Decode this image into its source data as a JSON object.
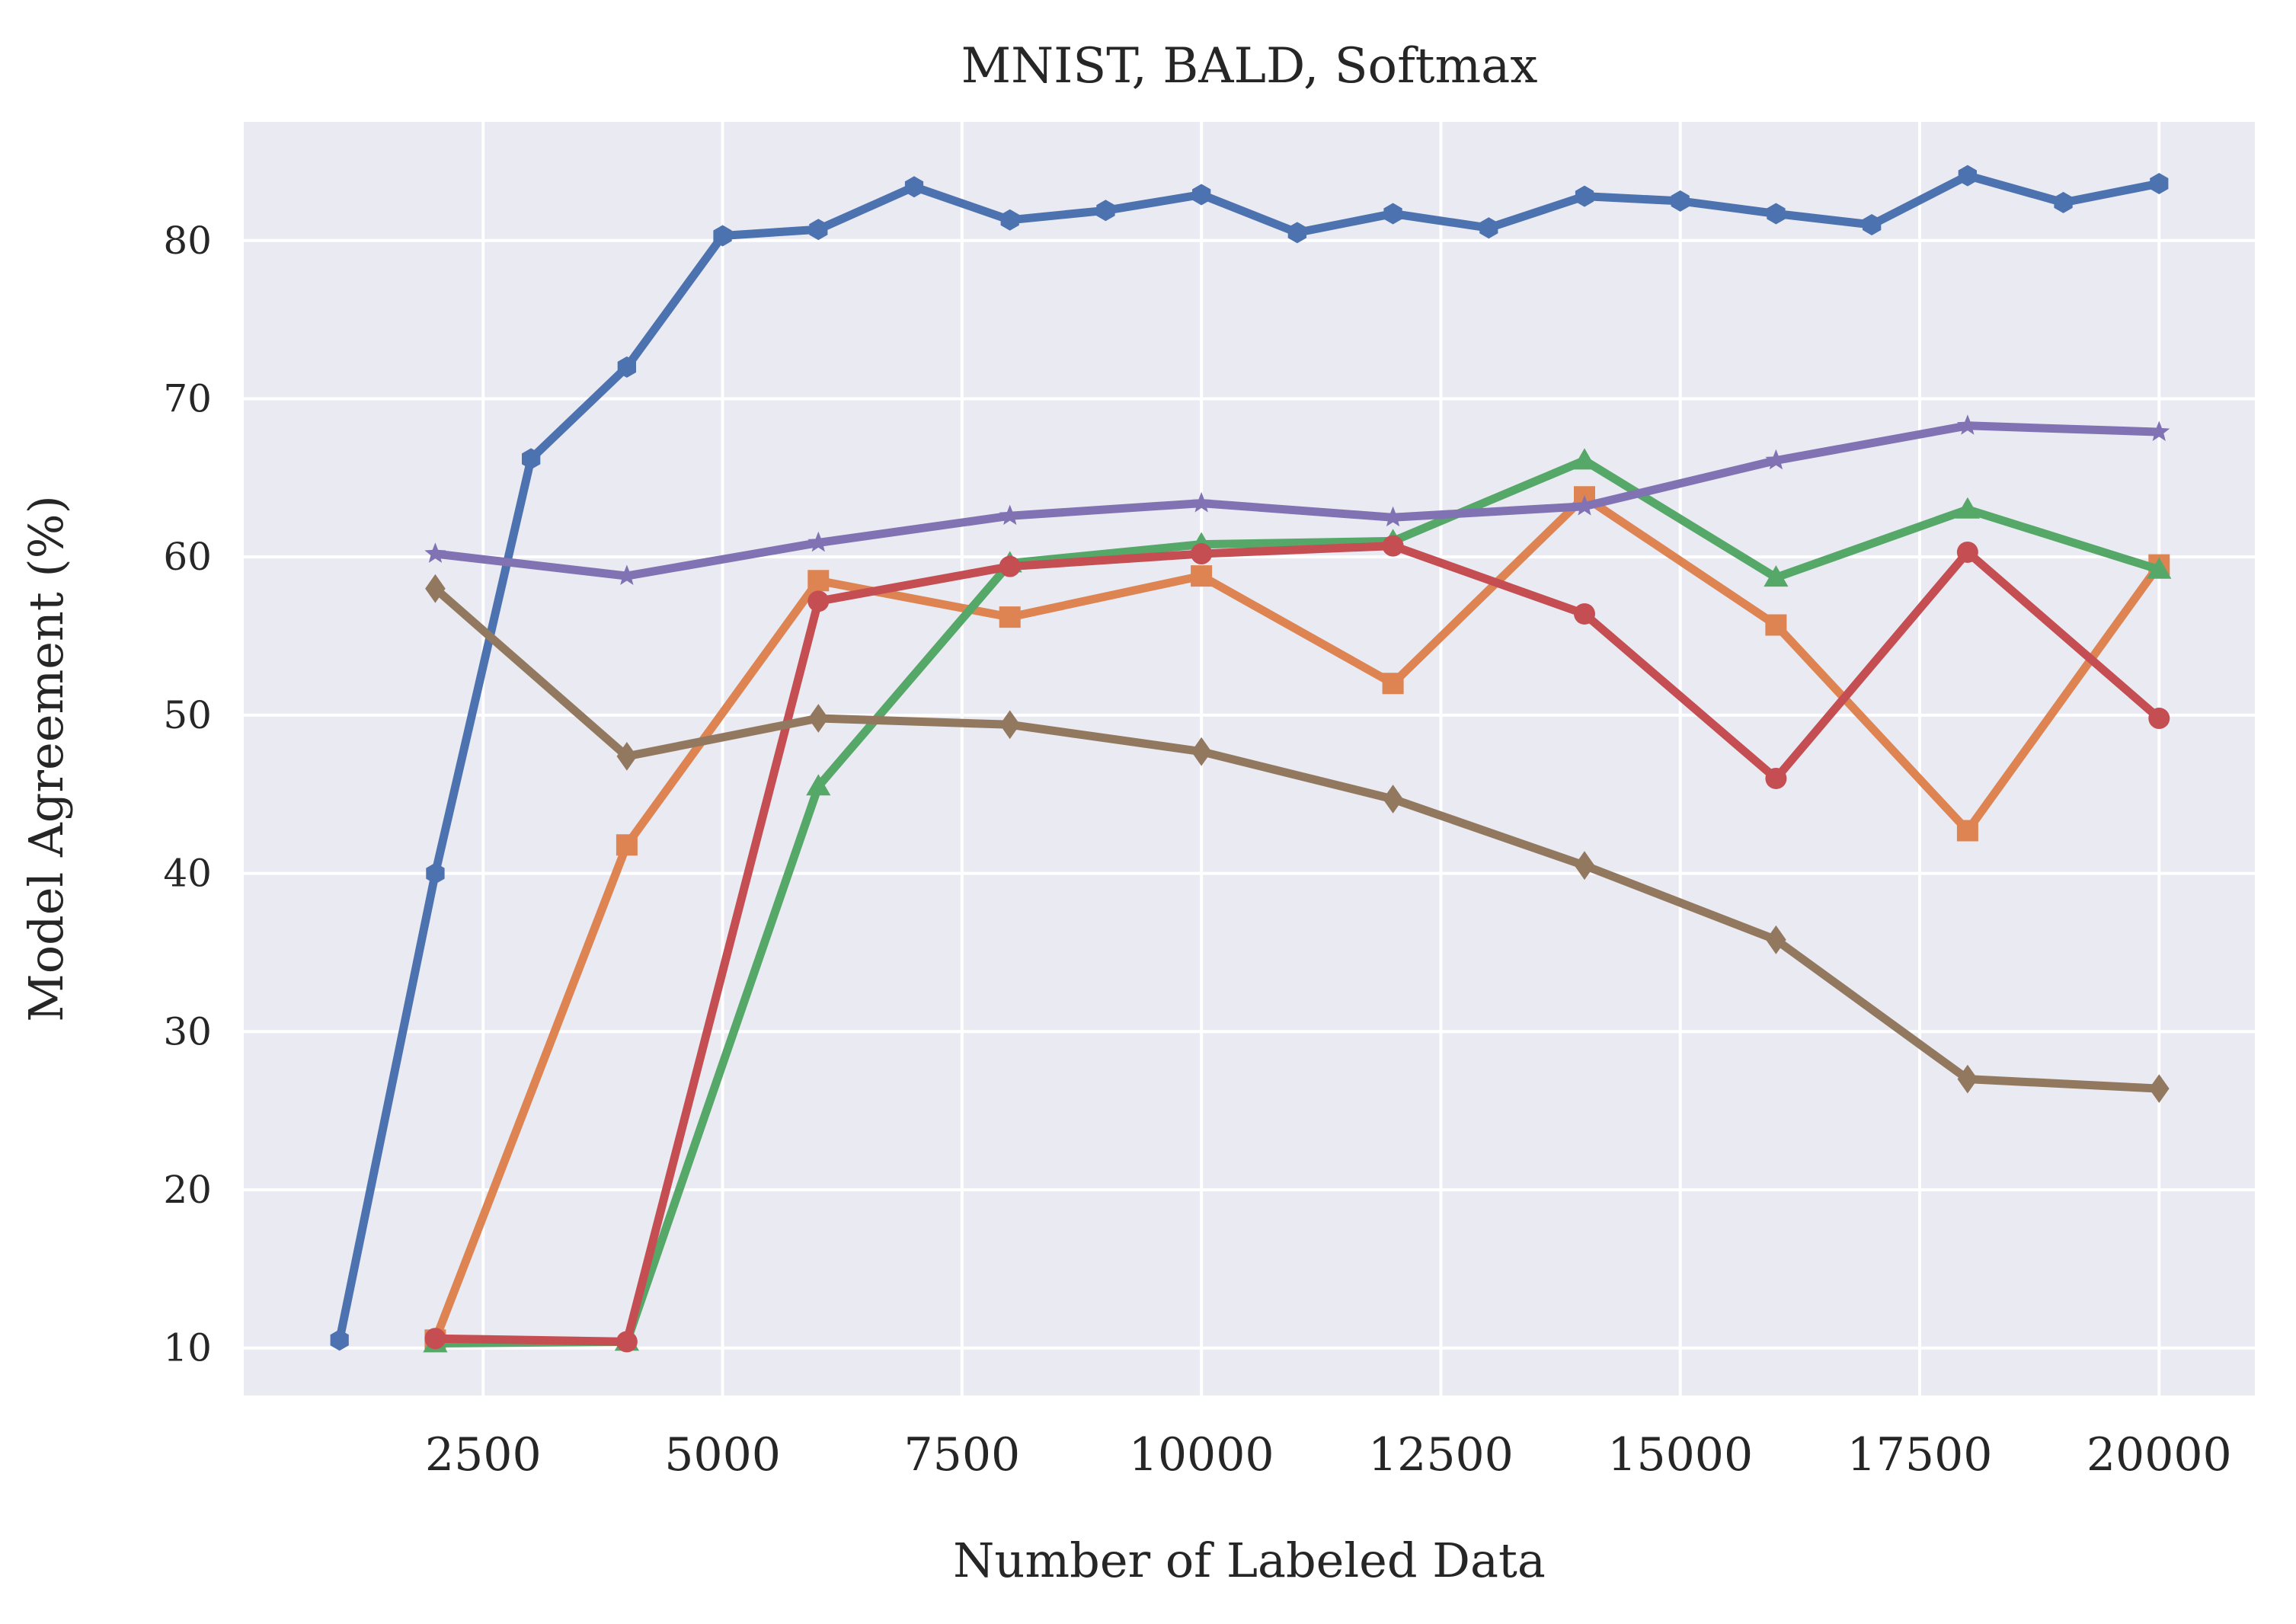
{
  "chart_data": {
    "type": "line",
    "title": "MNIST, BALD, Softmax",
    "xlabel": "Number of Labeled Data",
    "ylabel": "Model Agreement (%)",
    "xlim": [
      -0.0,
      21000
    ],
    "ylim": [
      7,
      87.5
    ],
    "xticks": [
      2500,
      5000,
      7500,
      10000,
      12500,
      15000,
      17500,
      20000
    ],
    "yticks": [
      10,
      20,
      30,
      40,
      50,
      60,
      70,
      80
    ],
    "grid": true,
    "background": "#eaeaf2",
    "series": [
      {
        "color": "#4c72b0",
        "marker": "hexagon",
        "x": [
          1000,
          2000,
          3000,
          4000,
          5000,
          6000,
          7000,
          8000,
          9000,
          10000,
          11000,
          12000,
          13000,
          14000,
          15000,
          16000,
          17000,
          18000,
          19000,
          20000
        ],
        "y": [
          10.5,
          40.0,
          66.2,
          72.0,
          80.3,
          80.7,
          83.4,
          81.3,
          81.9,
          82.9,
          80.5,
          81.7,
          80.8,
          82.8,
          82.5,
          81.7,
          81.0,
          84.1,
          82.4,
          83.6
        ]
      },
      {
        "color": "#dd8452",
        "marker": "square",
        "x": [
          2000,
          4000,
          6000,
          8000,
          10000,
          12000,
          14000,
          16000,
          18000,
          20000
        ],
        "y": [
          10.5,
          41.8,
          58.5,
          56.2,
          58.8,
          52.0,
          63.8,
          55.7,
          42.7,
          59.5
        ]
      },
      {
        "color": "#55a868",
        "marker": "triangle",
        "x": [
          2000,
          4000,
          6000,
          8000,
          10000,
          12000,
          14000,
          16000,
          18000,
          20000
        ],
        "y": [
          10.3,
          10.4,
          45.5,
          59.6,
          60.8,
          61.0,
          66.1,
          58.7,
          63.0,
          59.2
        ]
      },
      {
        "color": "#c44e52",
        "marker": "circle",
        "x": [
          2000,
          4000,
          6000,
          8000,
          10000,
          12000,
          14000,
          16000,
          18000,
          20000
        ],
        "y": [
          10.6,
          10.4,
          57.2,
          59.4,
          60.2,
          60.7,
          56.4,
          46.0,
          60.3,
          49.8
        ]
      },
      {
        "color": "#8172b3",
        "marker": "star",
        "x": [
          2000,
          4000,
          6000,
          8000,
          10000,
          12000,
          14000,
          16000,
          18000,
          20000
        ],
        "y": [
          60.2,
          58.8,
          60.9,
          62.6,
          63.4,
          62.5,
          63.2,
          66.1,
          68.3,
          67.9
        ]
      },
      {
        "color": "#937860",
        "marker": "diamond",
        "x": [
          2000,
          4000,
          6000,
          8000,
          10000,
          12000,
          14000,
          16000,
          18000,
          20000
        ],
        "y": [
          58.0,
          47.4,
          49.8,
          49.4,
          47.7,
          44.7,
          40.5,
          35.8,
          27.0,
          26.4
        ]
      }
    ]
  }
}
